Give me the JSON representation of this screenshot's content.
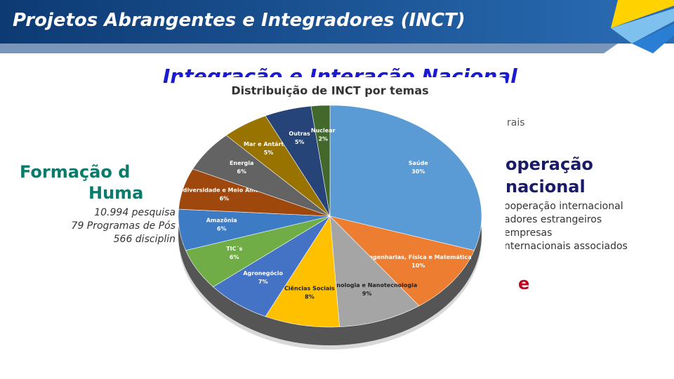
{
  "header": {
    "title": "Projetos Abrangentes e Integradores (INCT)"
  },
  "slide": {
    "subtitle": "Integração e Interação Nacional",
    "right_fragment_top": "rais",
    "left_heading": [
      "Formação d",
      "Huma"
    ],
    "left_lines": [
      "10.994 pesquisa",
      "79 Programas de Pós",
      "566 disciplin"
    ],
    "right_heading": [
      "operação",
      "nacional"
    ],
    "right_lines": [
      "ooperação internacional",
      "adores estrangeiros",
      "empresas",
      "nternacionais associados"
    ],
    "right_fragment_red": "e"
  },
  "chart_data": {
    "type": "pie",
    "title": "Distribuição de INCT por temas",
    "categories": [
      "Saúde",
      "Engenharias, Física e Matemática",
      "Biotecnologia e Nanotecnologia",
      "Ciências Sociais",
      "Agronegócio",
      "TIC´s",
      "Amazônia",
      "Biodiversidade e Meio Ambiente",
      "Energia",
      "Mar e Antártida",
      "Outras",
      "Nuclear"
    ],
    "values": [
      30,
      10,
      9,
      8,
      7,
      6,
      6,
      6,
      6,
      5,
      5,
      2
    ],
    "value_labels": [
      "30%",
      "10%",
      "9%",
      "8%",
      "7%",
      "6%",
      "6%",
      "6%",
      "6%",
      "5%",
      "5%",
      "2%"
    ],
    "colors": [
      "#5b9bd5",
      "#ed7d31",
      "#a5a5a5",
      "#ffc000",
      "#4472c4",
      "#70ad47",
      "#3d7cc4",
      "#9e480e",
      "#636363",
      "#997300",
      "#264478",
      "#43682b"
    ]
  }
}
